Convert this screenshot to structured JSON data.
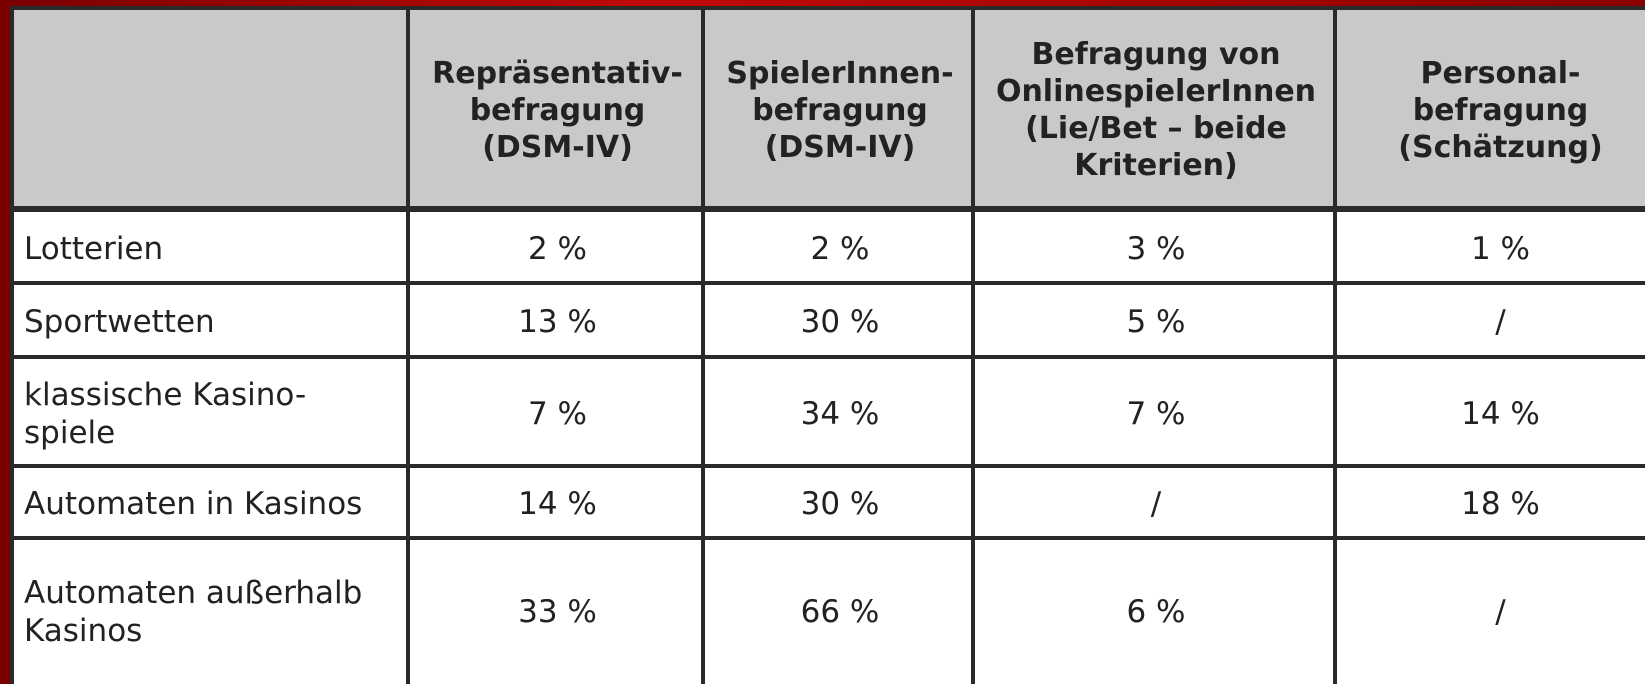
{
  "table": {
    "header": [
      [
        "Repräsentativ-",
        "befragung",
        "(DSM-IV)"
      ],
      [
        "SpielerInnen-",
        "befragung",
        "(DSM-IV)"
      ],
      [
        "Befragung von",
        "OnlinespielerInnen",
        "(Lie/Bet – beide",
        "Kriterien)"
      ],
      [
        "Personal-",
        "befragung",
        "(Schätzung)"
      ]
    ],
    "rows": [
      {
        "label": [
          "Lotterien"
        ],
        "cells": [
          "2 %",
          "2 %",
          "3 %",
          "1 %"
        ]
      },
      {
        "label": [
          "Sportwetten"
        ],
        "cells": [
          "13 %",
          "30 %",
          "5 %",
          "/"
        ]
      },
      {
        "label": [
          "klassische Kasino-",
          "spiele"
        ],
        "cells": [
          "7 %",
          "34 %",
          "7 %",
          "14 %"
        ]
      },
      {
        "label": [
          "Automaten in Kasinos"
        ],
        "cells": [
          "14 %",
          "30 %",
          "/",
          "18 %"
        ]
      },
      {
        "label": [
          "Automaten außerhalb",
          "Kasinos"
        ],
        "cells": [
          "33 %",
          "66 %",
          "6 %",
          "/"
        ]
      }
    ]
  }
}
